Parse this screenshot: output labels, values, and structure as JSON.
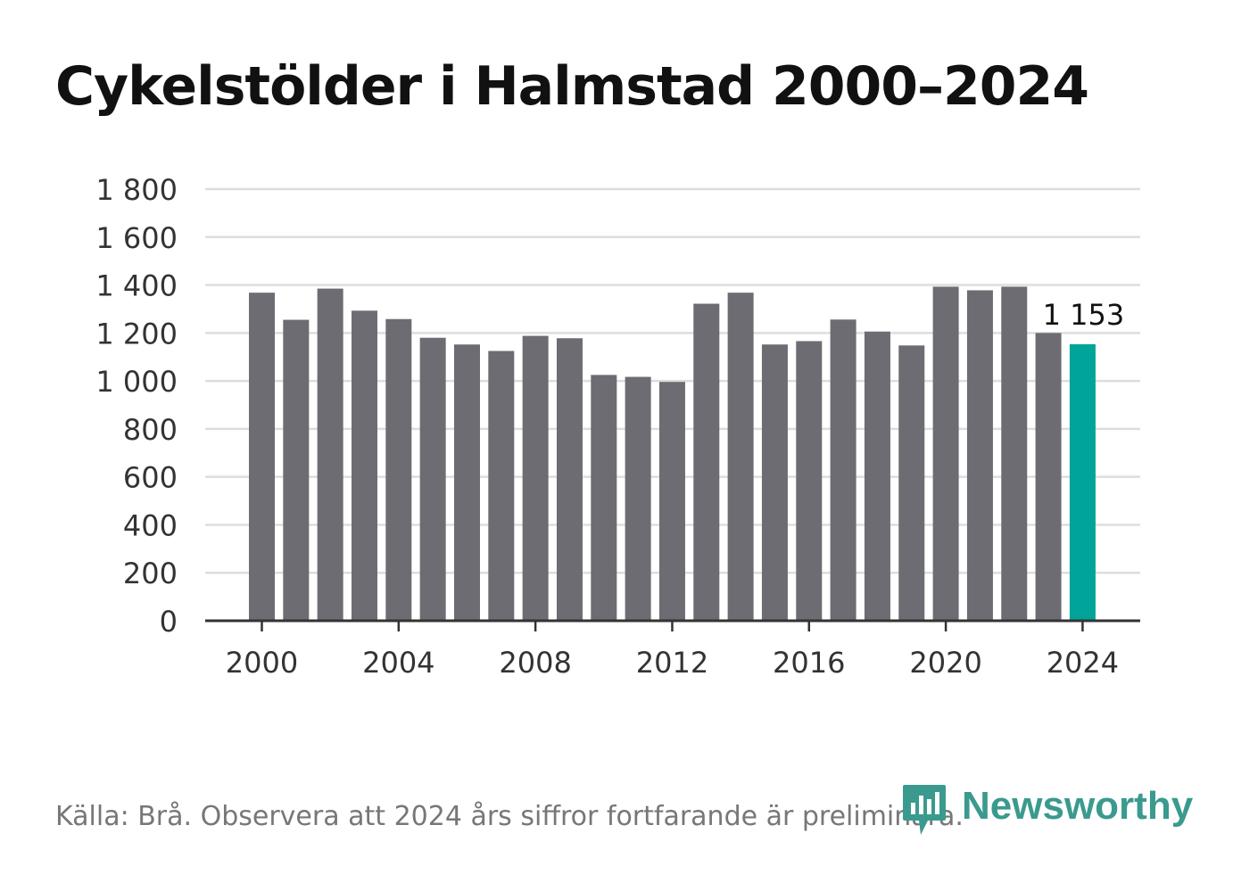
{
  "chart_data": {
    "type": "bar",
    "title": "Cykelstölder i Halmstad 2000–2024",
    "xlabel": "",
    "ylabel": "",
    "ylim": [
      0,
      1800
    ],
    "yticks": [
      0,
      200,
      400,
      600,
      800,
      1000,
      1200,
      1400,
      1600,
      1800
    ],
    "ytick_labels": [
      "0",
      "200",
      "400",
      "600",
      "800",
      "1 000",
      "1 200",
      "1 400",
      "1 600",
      "1 800"
    ],
    "xtick_labels": [
      "2000",
      "2004",
      "2008",
      "2012",
      "2016",
      "2020",
      "2024"
    ],
    "categories": [
      2000,
      2001,
      2002,
      2003,
      2004,
      2005,
      2006,
      2007,
      2008,
      2009,
      2010,
      2011,
      2012,
      2013,
      2014,
      2015,
      2016,
      2017,
      2018,
      2019,
      2020,
      2021,
      2022,
      2023,
      2024
    ],
    "values": [
      1368,
      1255,
      1385,
      1293,
      1258,
      1180,
      1152,
      1125,
      1188,
      1178,
      1025,
      1017,
      996,
      1322,
      1368,
      1152,
      1166,
      1256,
      1206,
      1148,
      1393,
      1378,
      1393,
      1200,
      1153
    ],
    "highlight_index": 24,
    "highlight_label": "1 153",
    "grid": true,
    "colors": {
      "bar": "#6d6c73",
      "highlight": "#00a498",
      "grid": "#dddddd",
      "axis": "#333333",
      "text": "#333333"
    }
  },
  "footer": {
    "source": "Källa: Brå. Observera att 2024 års siffror fortfarande är preliminära.",
    "brand": "Newsworthy",
    "brand_color": "#3a9a8e",
    "brand_icon": "newsworthy-chart-icon"
  }
}
